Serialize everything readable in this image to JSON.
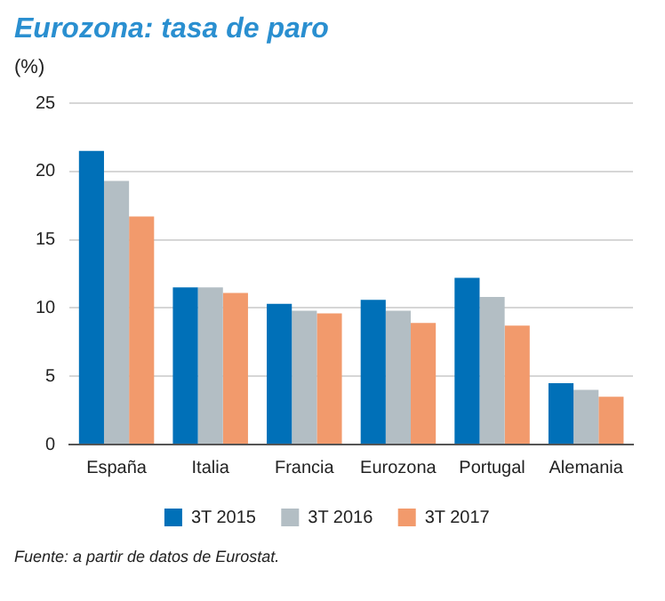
{
  "chart_data": {
    "type": "bar",
    "title": "Eurozona: tasa de paro",
    "ylabel": "(%)",
    "categories": [
      "España",
      "Italia",
      "Francia",
      "Eurozona",
      "Portugal",
      "Alemania"
    ],
    "series": [
      {
        "name": "3T 2015",
        "color": "#0070b8",
        "values": [
          21.5,
          11.5,
          10.3,
          10.6,
          12.2,
          4.5
        ]
      },
      {
        "name": "3T 2016",
        "color": "#b3bec4",
        "values": [
          19.3,
          11.5,
          9.8,
          9.8,
          10.8,
          4.0
        ]
      },
      {
        "name": "3T 2017",
        "color": "#f29a6c",
        "values": [
          16.7,
          11.1,
          9.6,
          8.9,
          8.7,
          3.5
        ]
      }
    ],
    "ylim": [
      0,
      25
    ],
    "yticks": [
      0,
      5,
      10,
      15,
      20,
      25
    ],
    "grid": "y",
    "legend": "bottom",
    "annotations": [
      "Fuente: a partir de datos de Eurostat."
    ]
  }
}
